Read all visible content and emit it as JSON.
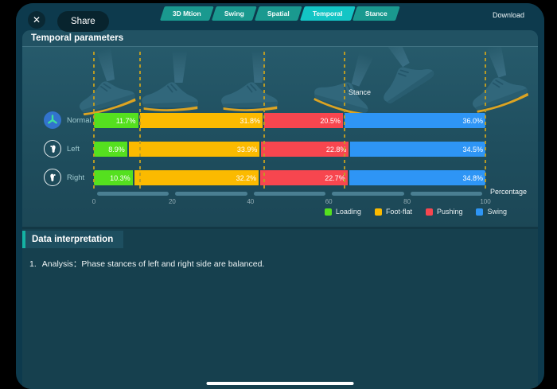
{
  "topbar": {
    "tabs": [
      {
        "label": "3D Mtion",
        "active": false
      },
      {
        "label": "Swing",
        "active": false
      },
      {
        "label": "Spatial",
        "active": false
      },
      {
        "label": "Temporal",
        "active": true
      },
      {
        "label": "Stance",
        "active": false
      }
    ],
    "download_label": "Download",
    "share_label": "Share",
    "close_glyph": "✕"
  },
  "panel": {
    "title": "Temporal parameters"
  },
  "chart_data": {
    "type": "bar",
    "stacked": true,
    "orientation": "horizontal",
    "categories": [
      "Normal",
      "Left",
      "Right"
    ],
    "series": [
      {
        "name": "Loading",
        "color": "#55e01f",
        "values": [
          11.7,
          8.9,
          10.3
        ]
      },
      {
        "name": "Foot-flat",
        "color": "#fbba00",
        "values": [
          31.8,
          33.9,
          32.2
        ]
      },
      {
        "name": "Pushing",
        "color": "#f7464f",
        "values": [
          20.5,
          22.8,
          22.7
        ]
      },
      {
        "name": "Swing",
        "color": "#2e95f5",
        "values": [
          36.0,
          34.5,
          34.8
        ]
      }
    ],
    "x_axis": {
      "ticks": [
        0,
        20,
        40,
        60,
        80,
        100
      ],
      "label": "Percentage",
      "range": [
        0,
        100
      ]
    },
    "annotations": {
      "stance_label": "Stance",
      "guidelines_pct": [
        0,
        11.7,
        43.5,
        64.0,
        100
      ]
    },
    "legend": [
      "Loading",
      "Foot-flat",
      "Pushing",
      "Swing"
    ],
    "legend_position": "bottom-right",
    "grid": false
  },
  "interpretation": {
    "title": "Data interpretation",
    "items": [
      {
        "num": "1.",
        "text": "Analysis：Phase stances of left and right side are balanced."
      }
    ]
  }
}
